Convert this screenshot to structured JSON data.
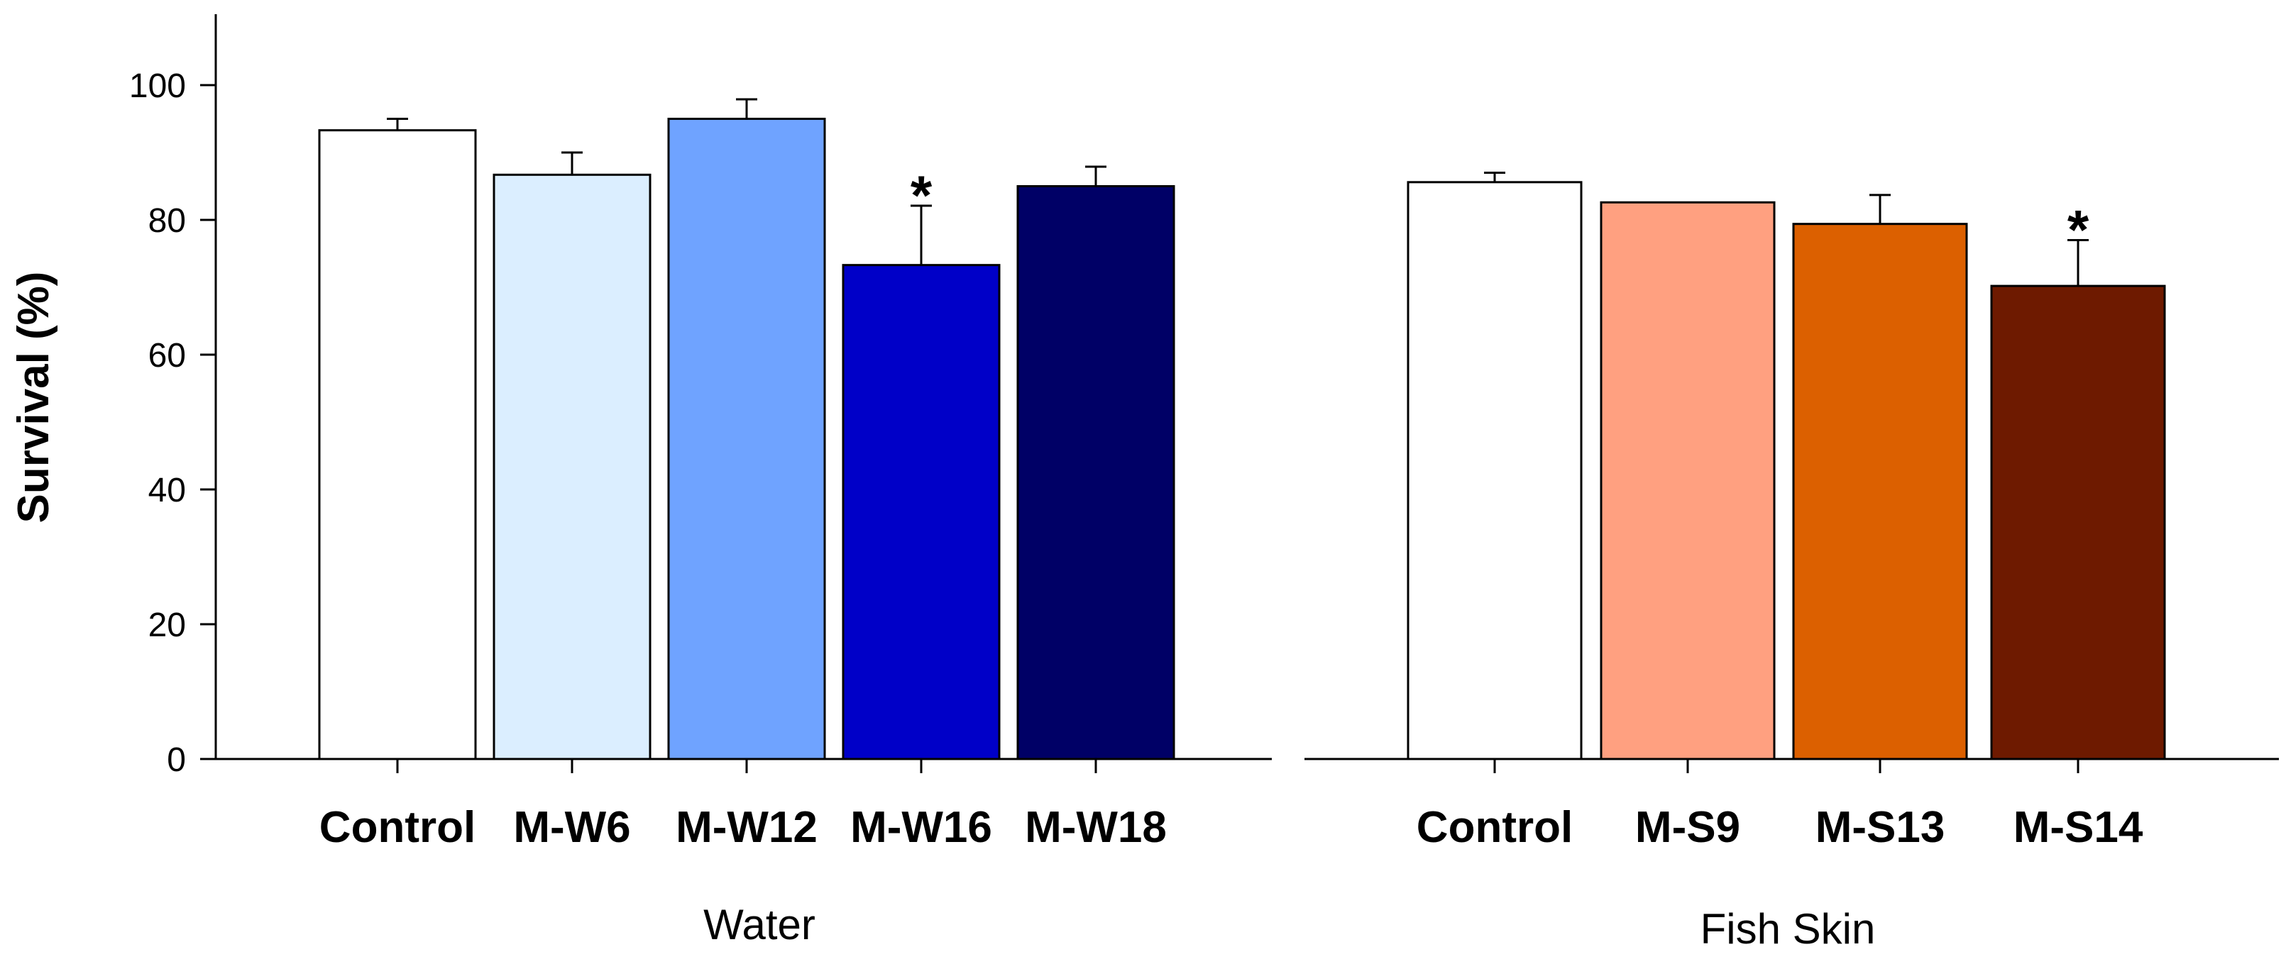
{
  "chart_data": {
    "type": "bar",
    "ylabel": "Survival (%)",
    "ylim": [
      0,
      110
    ],
    "yticks": [
      0,
      20,
      40,
      60,
      80,
      100
    ],
    "grid": false,
    "panels": [
      {
        "group_label": "Water",
        "categories": [
          "Control",
          "M-W6",
          "M-W12",
          "M-W16",
          "M-W18"
        ],
        "values": [
          93.3,
          86.7,
          95.0,
          73.3,
          85.0
        ],
        "errors": [
          1.7,
          3.3,
          2.9,
          8.8,
          2.9
        ],
        "significant": [
          false,
          false,
          false,
          true,
          false
        ],
        "colors": [
          "#ffffff",
          "#dbeeff",
          "#6fa3ff",
          "#0000c8",
          "#000066"
        ]
      },
      {
        "group_label": "Fish Skin",
        "categories": [
          "Control",
          "M-S9",
          "M-S13",
          "M-S14"
        ],
        "values": [
          85.6,
          82.6,
          79.4,
          70.2
        ],
        "errors": [
          1.4,
          0,
          4.3,
          6.8
        ],
        "significant": [
          false,
          false,
          false,
          true
        ],
        "colors": [
          "#ffffff",
          "#ffa080",
          "#dc6000",
          "#6e1a00"
        ]
      }
    ],
    "significance_marker": "*"
  }
}
